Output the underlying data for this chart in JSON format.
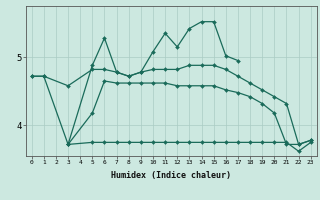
{
  "xlabel": "Humidex (Indice chaleur)",
  "bg_color": "#cce8e0",
  "line_color": "#1a6b5a",
  "grid_color": "#aaccc4",
  "xlim": [
    -0.5,
    23.5
  ],
  "ylim": [
    3.55,
    5.75
  ],
  "yticks": [
    4,
    5
  ],
  "xticks": [
    0,
    1,
    2,
    3,
    4,
    5,
    6,
    7,
    8,
    9,
    10,
    11,
    12,
    13,
    14,
    15,
    16,
    17,
    18,
    19,
    20,
    21,
    22,
    23
  ],
  "series": [
    {
      "x": [
        0,
        1,
        3,
        5,
        6,
        7,
        8,
        9,
        10,
        11,
        12,
        13,
        14,
        15,
        16,
        17
      ],
      "y": [
        4.72,
        4.72,
        3.72,
        4.88,
        5.28,
        4.78,
        4.72,
        4.78,
        5.08,
        5.35,
        5.15,
        5.42,
        5.52,
        5.52,
        5.02,
        4.95
      ]
    },
    {
      "x": [
        0,
        1,
        3,
        5,
        6,
        7,
        8,
        9,
        10,
        11,
        12,
        13,
        14,
        15,
        16,
        17,
        18,
        19,
        20,
        21,
        22,
        23
      ],
      "y": [
        4.72,
        4.72,
        4.58,
        4.82,
        4.82,
        4.78,
        4.72,
        4.78,
        4.82,
        4.82,
        4.82,
        4.88,
        4.88,
        4.88,
        4.82,
        4.72,
        4.62,
        4.52,
        4.42,
        4.32,
        3.72,
        3.78
      ]
    },
    {
      "x": [
        3,
        5,
        6,
        7,
        8,
        9,
        10,
        11,
        12,
        13,
        14,
        15,
        16,
        17,
        18,
        19,
        20,
        21,
        22,
        23
      ],
      "y": [
        3.72,
        4.18,
        4.65,
        4.62,
        4.62,
        4.62,
        4.62,
        4.62,
        4.58,
        4.58,
        4.58,
        4.58,
        4.52,
        4.48,
        4.42,
        4.32,
        4.18,
        3.72,
        3.72,
        3.78
      ]
    },
    {
      "x": [
        3,
        5,
        6,
        7,
        8,
        9,
        10,
        11,
        12,
        13,
        14,
        15,
        16,
        17,
        18,
        19,
        20,
        21,
        22,
        23
      ],
      "y": [
        3.72,
        3.75,
        3.75,
        3.75,
        3.75,
        3.75,
        3.75,
        3.75,
        3.75,
        3.75,
        3.75,
        3.75,
        3.75,
        3.75,
        3.75,
        3.75,
        3.75,
        3.75,
        3.62,
        3.75
      ]
    }
  ]
}
